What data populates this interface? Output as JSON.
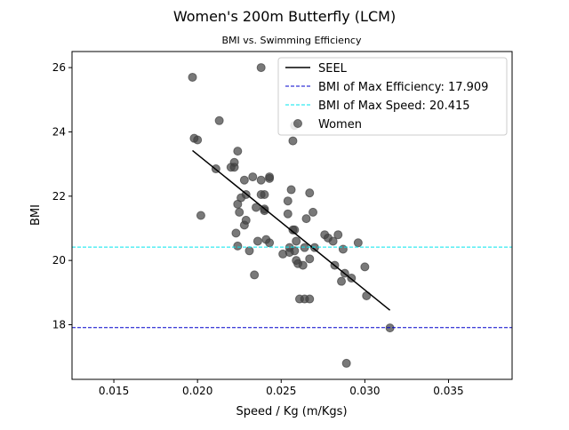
{
  "chart_data": {
    "type": "scatter",
    "title": "Women's 200m Butterfly (LCM)",
    "subtitle": "BMI vs. Swimming Efficiency",
    "xlabel": "Speed / Kg (m/Kgs)",
    "ylabel": "BMI",
    "xlim": [
      0.0125,
      0.0388
    ],
    "ylim": [
      16.3,
      26.5
    ],
    "xticks": [
      0.015,
      0.02,
      0.025,
      0.03,
      0.035
    ],
    "xtick_labels": [
      "0.015",
      "0.020",
      "0.025",
      "0.030",
      "0.035"
    ],
    "yticks": [
      18,
      20,
      22,
      24,
      26
    ],
    "ytick_labels": [
      "18",
      "20",
      "22",
      "24",
      "26"
    ],
    "grid": false,
    "legend_position": "upper right",
    "colors": {
      "seel": "#000000",
      "max_efficiency": "#0000cc",
      "max_speed": "#00e5ee",
      "points": "#404040"
    },
    "series": [
      {
        "name": "Women",
        "kind": "scatter",
        "points": [
          [
            0.0197,
            25.7
          ],
          [
            0.0238,
            26.0
          ],
          [
            0.0198,
            23.8
          ],
          [
            0.02,
            23.75
          ],
          [
            0.0213,
            24.35
          ],
          [
            0.0258,
            24.2
          ],
          [
            0.0257,
            23.72
          ],
          [
            0.0224,
            23.4
          ],
          [
            0.0222,
            23.05
          ],
          [
            0.022,
            22.9
          ],
          [
            0.0222,
            22.9
          ],
          [
            0.0211,
            22.85
          ],
          [
            0.0233,
            22.6
          ],
          [
            0.0243,
            22.6
          ],
          [
            0.0243,
            22.55
          ],
          [
            0.0238,
            22.5
          ],
          [
            0.0228,
            22.5
          ],
          [
            0.0256,
            22.2
          ],
          [
            0.0267,
            22.1
          ],
          [
            0.0238,
            22.05
          ],
          [
            0.024,
            22.05
          ],
          [
            0.0229,
            22.05
          ],
          [
            0.0226,
            21.95
          ],
          [
            0.0254,
            21.85
          ],
          [
            0.0224,
            21.75
          ],
          [
            0.0235,
            21.65
          ],
          [
            0.024,
            21.6
          ],
          [
            0.024,
            21.55
          ],
          [
            0.0225,
            21.5
          ],
          [
            0.0254,
            21.45
          ],
          [
            0.0269,
            21.5
          ],
          [
            0.0202,
            21.4
          ],
          [
            0.0265,
            21.3
          ],
          [
            0.0229,
            21.25
          ],
          [
            0.0228,
            21.1
          ],
          [
            0.0257,
            20.95
          ],
          [
            0.0258,
            20.95
          ],
          [
            0.0223,
            20.85
          ],
          [
            0.0276,
            20.8
          ],
          [
            0.0284,
            20.8
          ],
          [
            0.0278,
            20.7
          ],
          [
            0.0241,
            20.65
          ],
          [
            0.0236,
            20.6
          ],
          [
            0.0243,
            20.55
          ],
          [
            0.0259,
            20.6
          ],
          [
            0.0281,
            20.6
          ],
          [
            0.0296,
            20.55
          ],
          [
            0.0224,
            20.45
          ],
          [
            0.0264,
            20.4
          ],
          [
            0.0255,
            20.4
          ],
          [
            0.027,
            20.4
          ],
          [
            0.0287,
            20.35
          ],
          [
            0.0231,
            20.3
          ],
          [
            0.0258,
            20.3
          ],
          [
            0.0255,
            20.25
          ],
          [
            0.0251,
            20.2
          ],
          [
            0.0267,
            20.05
          ],
          [
            0.0259,
            20.0
          ],
          [
            0.026,
            19.9
          ],
          [
            0.0282,
            19.85
          ],
          [
            0.0263,
            19.85
          ],
          [
            0.03,
            19.8
          ],
          [
            0.0288,
            19.6
          ],
          [
            0.0234,
            19.55
          ],
          [
            0.0292,
            19.45
          ],
          [
            0.0286,
            19.35
          ],
          [
            0.0261,
            18.8
          ],
          [
            0.0264,
            18.8
          ],
          [
            0.0267,
            18.8
          ],
          [
            0.0301,
            18.9
          ],
          [
            0.0315,
            17.9
          ],
          [
            0.0289,
            16.8
          ]
        ]
      }
    ],
    "lines": [
      {
        "name": "SEEL",
        "kind": "line",
        "style": "solid",
        "x": [
          0.0197,
          0.0315
        ],
        "y": [
          23.42,
          18.45
        ]
      },
      {
        "name": "BMI of Max Efficiency: 17.909",
        "kind": "hline",
        "style": "dashed",
        "y": 17.909
      },
      {
        "name": "BMI of Max Speed: 20.415",
        "kind": "hline",
        "style": "dashed",
        "y": 20.415
      }
    ],
    "legend": [
      {
        "label": "SEEL",
        "kind": "line",
        "color_key": "seel"
      },
      {
        "label": "BMI of Max Efficiency: 17.909",
        "kind": "dash",
        "color_key": "max_efficiency"
      },
      {
        "label": "BMI of Max Speed: 20.415",
        "kind": "dash",
        "color_key": "max_speed"
      },
      {
        "label": "Women",
        "kind": "marker",
        "color_key": "points"
      }
    ]
  }
}
